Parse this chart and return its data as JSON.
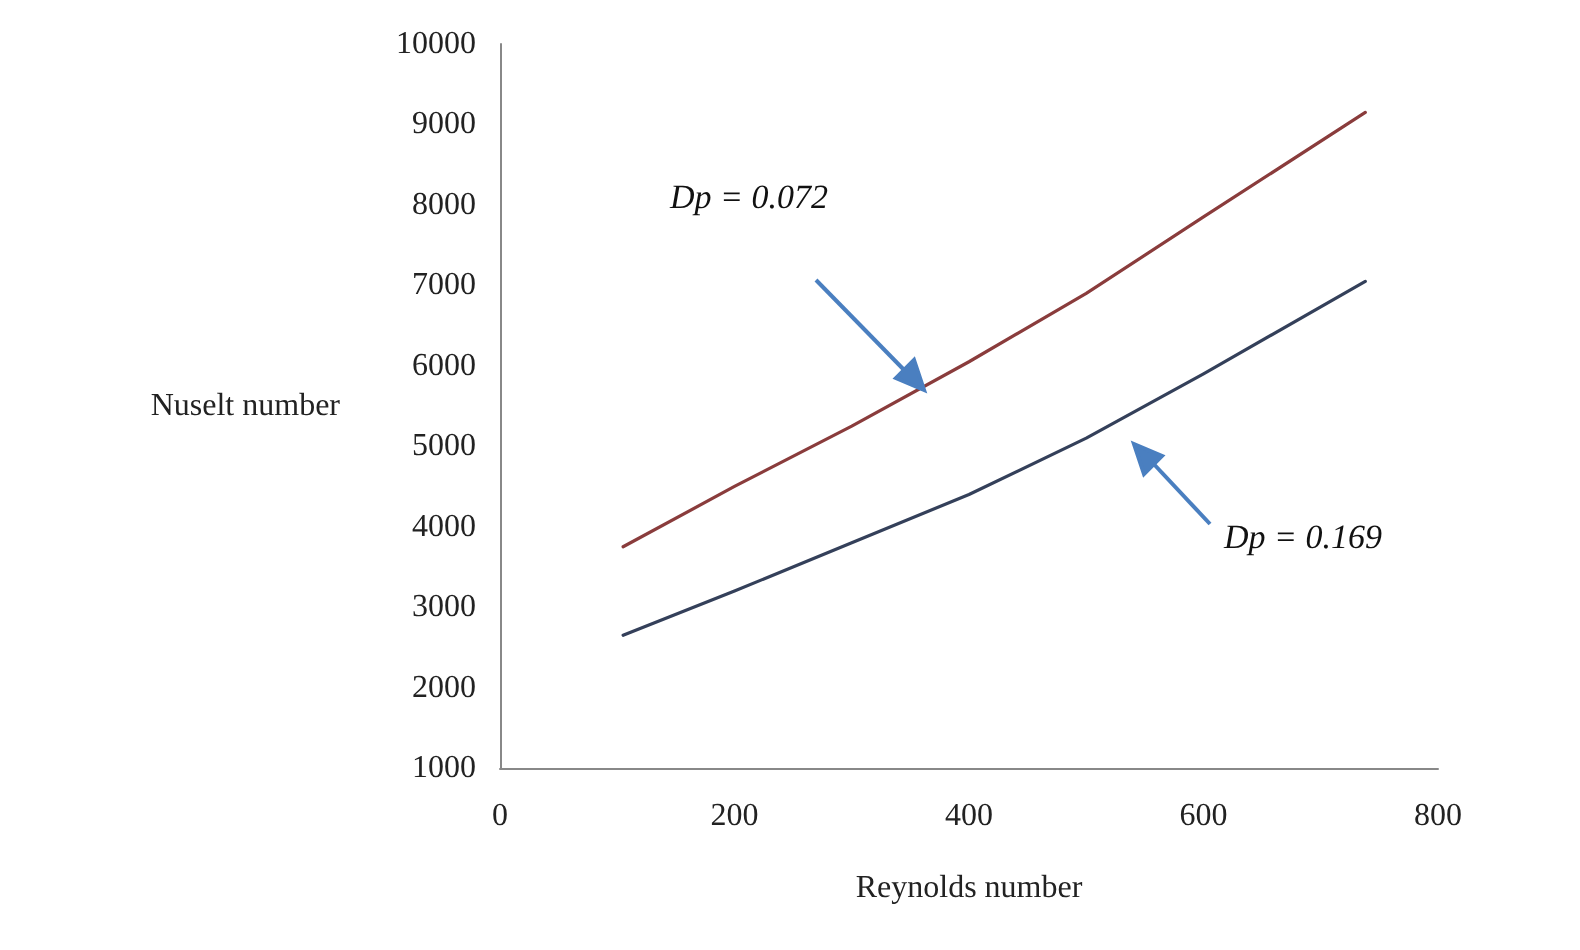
{
  "chart_data": {
    "type": "line",
    "xlabel": "Reynolds number",
    "ylabel": "Nuselt number",
    "xlim": [
      0,
      800
    ],
    "xticks": [
      0,
      200,
      400,
      600,
      800
    ],
    "ylim": [
      1000,
      10000
    ],
    "yticks": [
      1000,
      2000,
      3000,
      4000,
      5000,
      6000,
      7000,
      8000,
      9000,
      10000
    ],
    "grid": false,
    "marker": "none",
    "line_style": "solid",
    "annotations": [
      "Dp = 0.072",
      "Dp = 0.169"
    ],
    "series": [
      {
        "color": "#8a3c3c",
        "x": [
          105,
          200,
          300,
          400,
          500,
          600,
          738
        ],
        "values": [
          3750,
          4500,
          5250,
          6050,
          6900,
          7850,
          9150
        ]
      },
      {
        "color": "#34405a",
        "x": [
          105,
          200,
          300,
          400,
          500,
          600,
          738
        ],
        "values": [
          2650,
          3200,
          3800,
          4400,
          5100,
          5900,
          7050
        ]
      }
    ]
  }
}
